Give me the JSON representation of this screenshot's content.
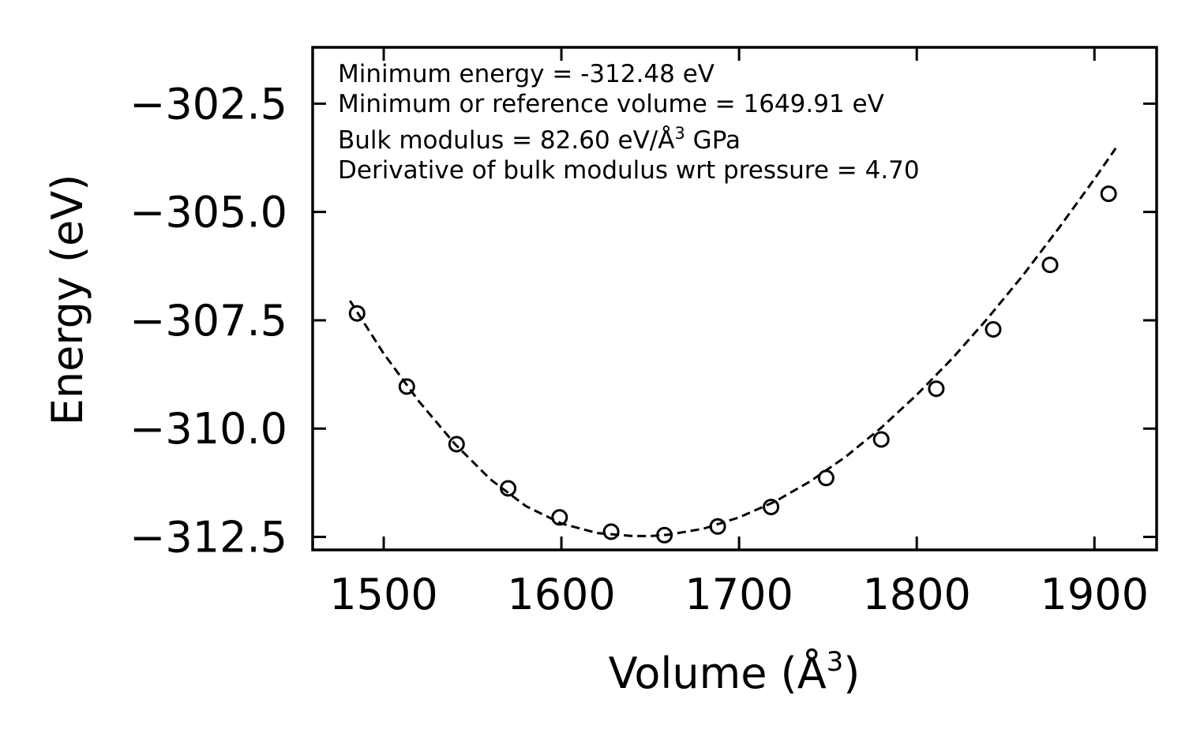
{
  "chart_data": {
    "type": "scatter",
    "title": "",
    "xlabel": "Volume (Å",
    "xlabel_sup": "3",
    "xlabel_close": ")",
    "ylabel": "Energy (eV)",
    "xlim": [
      1460,
      1935
    ],
    "ylim": [
      -312.8,
      -301.2
    ],
    "xticks": [
      1500,
      1600,
      1700,
      1800,
      1900
    ],
    "xtick_labels": [
      "1500",
      "1600",
      "1700",
      "1800",
      "1900"
    ],
    "yticks": [
      -302.5,
      -305.0,
      -307.5,
      -310.0,
      -312.5
    ],
    "ytick_labels": [
      "−302.5",
      "−305.0",
      "−307.5",
      "−310.0",
      "−312.5"
    ],
    "series": [
      {
        "name": "data",
        "style": "open-circle",
        "x": [
          1485,
          1513,
          1541,
          1570,
          1599,
          1628,
          1658,
          1688,
          1718,
          1749,
          1780,
          1811,
          1843,
          1875,
          1908
        ],
        "y": [
          -307.34,
          -309.03,
          -310.36,
          -311.38,
          -312.05,
          -312.38,
          -312.46,
          -312.26,
          -311.81,
          -311.14,
          -310.25,
          -309.08,
          -307.71,
          -306.22,
          -304.58
        ]
      },
      {
        "name": "fit",
        "style": "dashed-line",
        "x": [
          1481,
          1500,
          1520,
          1540,
          1560,
          1580,
          1600,
          1620,
          1640,
          1649.91,
          1660,
          1680,
          1700,
          1720,
          1740,
          1760,
          1780,
          1800,
          1820,
          1840,
          1860,
          1880,
          1900,
          1912
        ],
        "y": [
          -307.05,
          -308.27,
          -309.38,
          -310.35,
          -311.17,
          -311.79,
          -312.19,
          -312.41,
          -312.48,
          -312.48,
          -312.45,
          -312.31,
          -312.05,
          -311.69,
          -311.22,
          -310.65,
          -309.98,
          -309.22,
          -308.38,
          -307.45,
          -306.45,
          -305.37,
          -304.24,
          -303.53
        ]
      }
    ],
    "annotations": [
      {
        "text": "Minimum energy = -312.48 eV"
      },
      {
        "text": "Minimum or reference volume = 1649.91 eV"
      },
      {
        "text": "Bulk modulus = 82.60 eV/Å",
        "sup": "3",
        "tail": " GPa"
      },
      {
        "text": "Derivative of bulk modulus wrt pressure = 4.70"
      }
    ],
    "colors": {
      "axes": "#000000",
      "marker": "#000000",
      "fit_line": "#000000",
      "background": "#ffffff"
    }
  }
}
